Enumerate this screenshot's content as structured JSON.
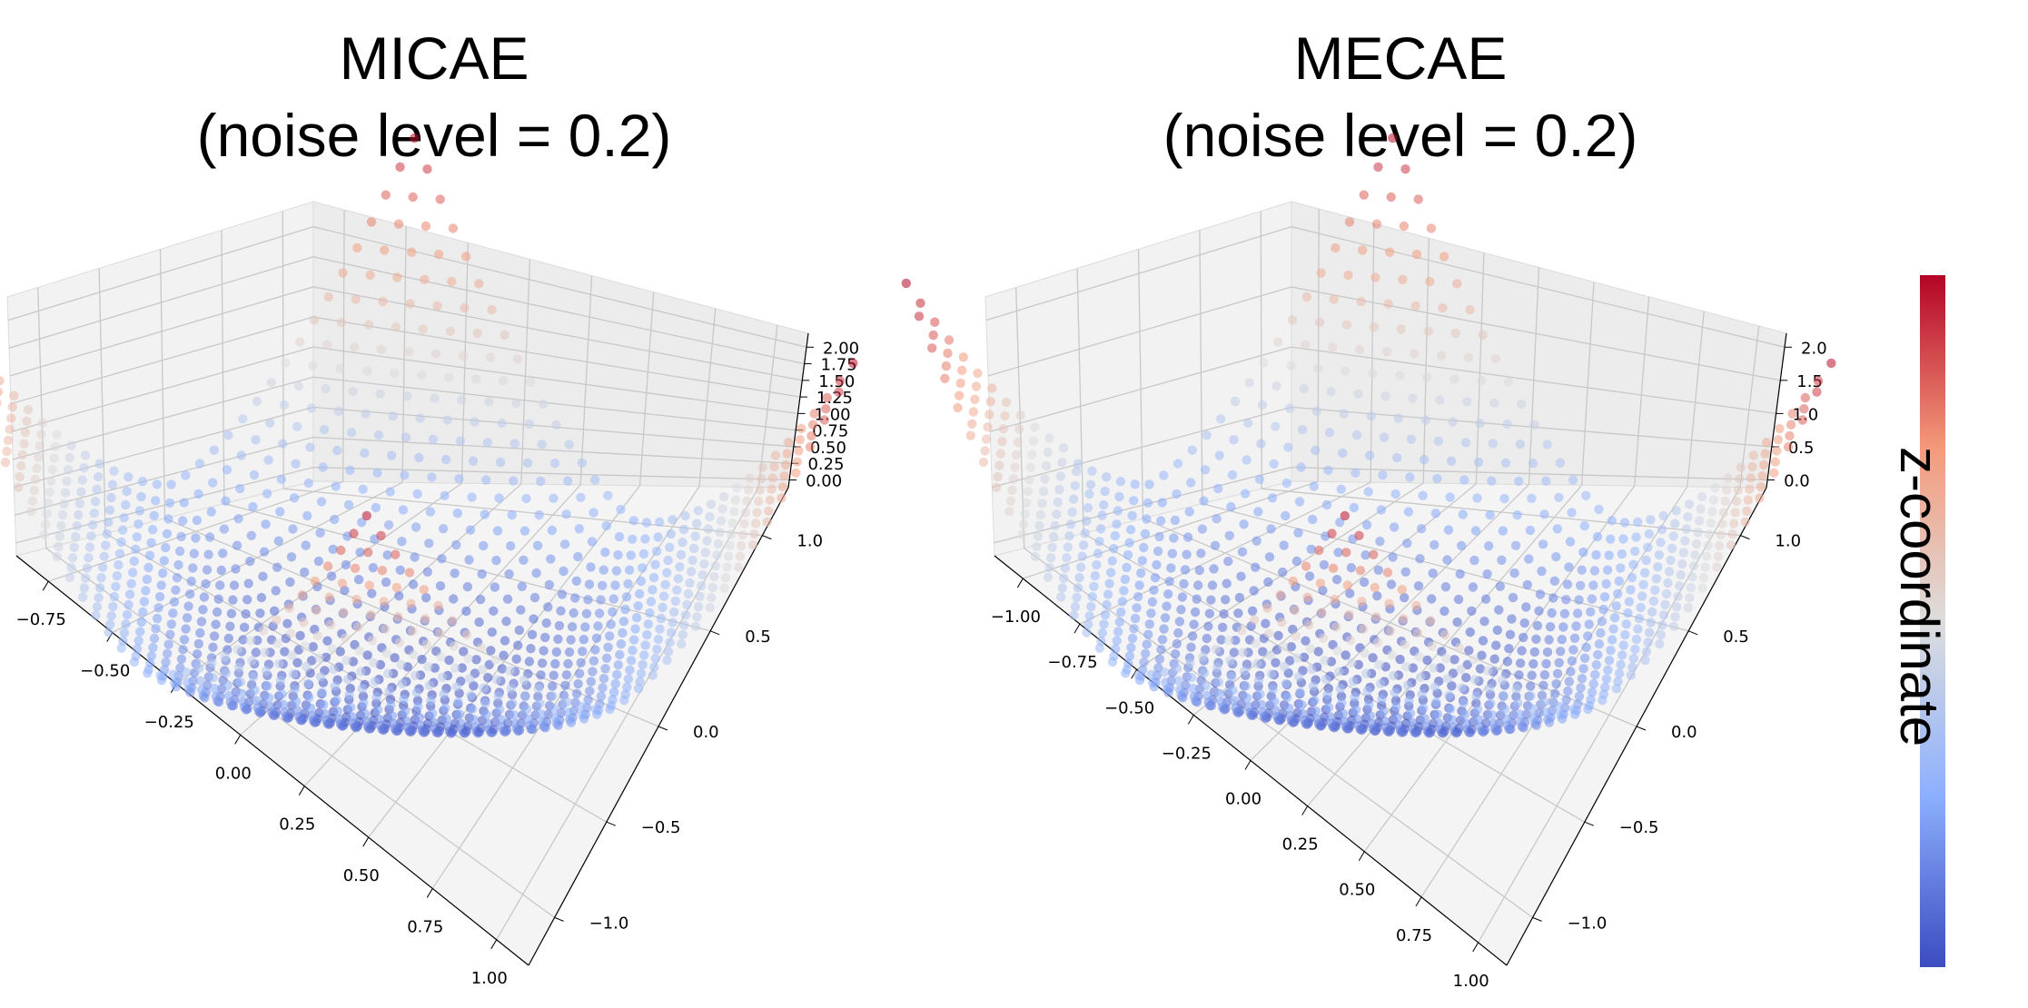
{
  "chart_data": [
    {
      "type": "scatter",
      "subtype": "3d-surface-points",
      "title_line1": "MICAE",
      "title_line2": "(noise level = 0.2)",
      "x_ticks": [
        "−0.75",
        "−0.50",
        "−0.25",
        "0.00",
        "0.25",
        "0.50",
        "0.75",
        "1.00"
      ],
      "y_ticks": [
        "−1.0",
        "−0.5",
        "0.0",
        "0.5",
        "1.0"
      ],
      "z_ticks": [
        "0.00",
        "0.25",
        "0.50",
        "0.75",
        "1.00",
        "1.25",
        "1.50",
        "1.75",
        "2.00"
      ],
      "xlim": [
        -1.0,
        1.0
      ],
      "ylim": [
        -1.2,
        1.2
      ],
      "zlim": [
        0,
        2.0
      ],
      "surface": "z ~ x^2 + y^2 style bowl with raised corners reaching ~2.0",
      "grid": true
    },
    {
      "type": "scatter",
      "subtype": "3d-surface-points",
      "title_line1": "MECAE",
      "title_line2": "(noise level = 0.2)",
      "x_ticks": [
        "−1.00",
        "−0.75",
        "−0.50",
        "−0.25",
        "0.00",
        "0.25",
        "0.50",
        "0.75",
        "1.00"
      ],
      "y_ticks": [
        "−1.0",
        "−0.5",
        "0.0",
        "0.5",
        "1.0"
      ],
      "z_ticks": [
        "0.0",
        "0.5",
        "1.0",
        "1.5",
        "2.0"
      ],
      "xlim": [
        -1.0,
        1.0
      ],
      "ylim": [
        -1.2,
        1.2
      ],
      "zlim": [
        0,
        2.1
      ],
      "surface": "bowl with raised corners reaching ~2.0; left corner curls outward",
      "grid": true
    }
  ],
  "colorbar": {
    "label": "z-coordinate",
    "colormap": "coolwarm",
    "low_color": "#3b4cc0",
    "mid_color": "#dddddd",
    "high_color": "#b40426"
  }
}
